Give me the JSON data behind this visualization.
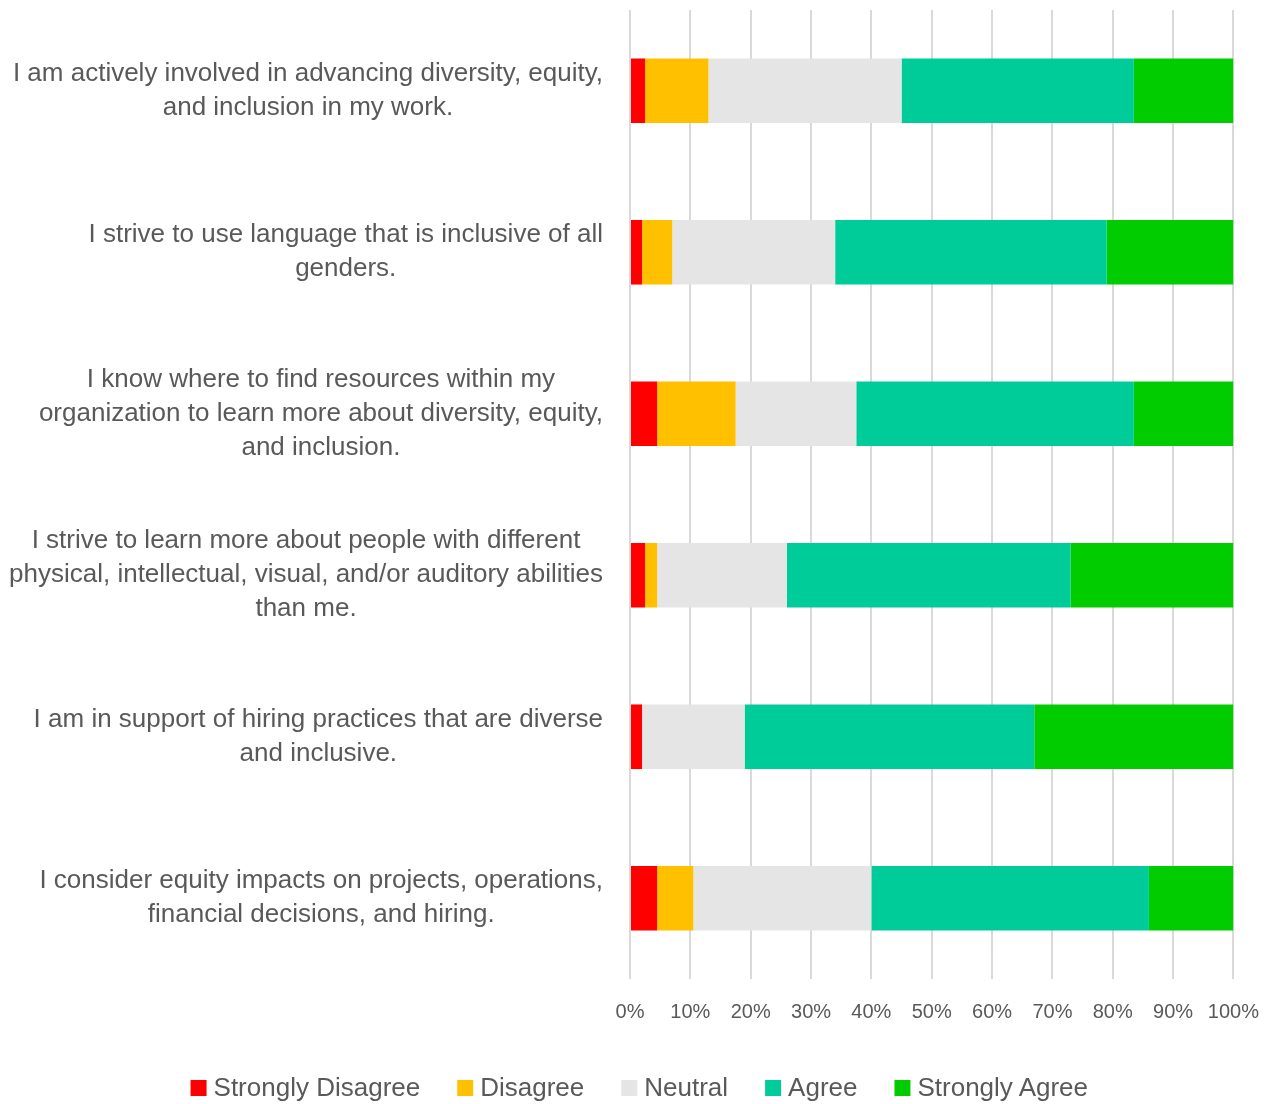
{
  "chart_data": {
    "type": "bar",
    "orientation": "horizontal",
    "stacked": true,
    "categories": [
      "I am actively involved in advancing diversity, equity, and inclusion in my work.",
      "I strive to use language that is inclusive of all genders.",
      "I know where to find resources within my organization to learn more about diversity, equity, and inclusion.",
      "I strive to learn more about people with different physical, intellectual, visual, and/or auditory abilities than me.",
      "I am in support of hiring practices that are diverse and inclusive.",
      "I consider equity impacts on projects, operations, financial decisions, and hiring."
    ],
    "series": [
      {
        "name": "Strongly Disagree",
        "color": "#ff0000",
        "values": [
          2.5,
          2,
          4.5,
          2.5,
          2,
          4.5
        ]
      },
      {
        "name": "Disagree",
        "color": "#ffc000",
        "values": [
          10.5,
          5,
          13,
          2,
          0,
          6
        ]
      },
      {
        "name": "Neutral",
        "color": "#e5e5e5",
        "values": [
          32,
          27,
          20,
          21.5,
          17,
          29.5
        ]
      },
      {
        "name": "Agree",
        "color": "#00cc99",
        "values": [
          38.5,
          45,
          46,
          47,
          48,
          46
        ]
      },
      {
        "name": "Strongly Agree",
        "color": "#00cc00",
        "values": [
          16.5,
          21,
          16.5,
          27,
          33,
          14
        ]
      }
    ],
    "xlim": [
      0,
      100
    ],
    "xticks": [
      {
        "value": 0,
        "label": "0%"
      },
      {
        "value": 10,
        "label": "10%"
      },
      {
        "value": 20,
        "label": "20%"
      },
      {
        "value": 30,
        "label": "30%"
      },
      {
        "value": 40,
        "label": "40%"
      },
      {
        "value": 50,
        "label": "50%"
      },
      {
        "value": 60,
        "label": "60%"
      },
      {
        "value": 70,
        "label": "70%"
      },
      {
        "value": 80,
        "label": "80%"
      },
      {
        "value": 90,
        "label": "90%"
      },
      {
        "value": 100,
        "label": "100%"
      }
    ],
    "grid": "x",
    "legend": "bottom"
  }
}
